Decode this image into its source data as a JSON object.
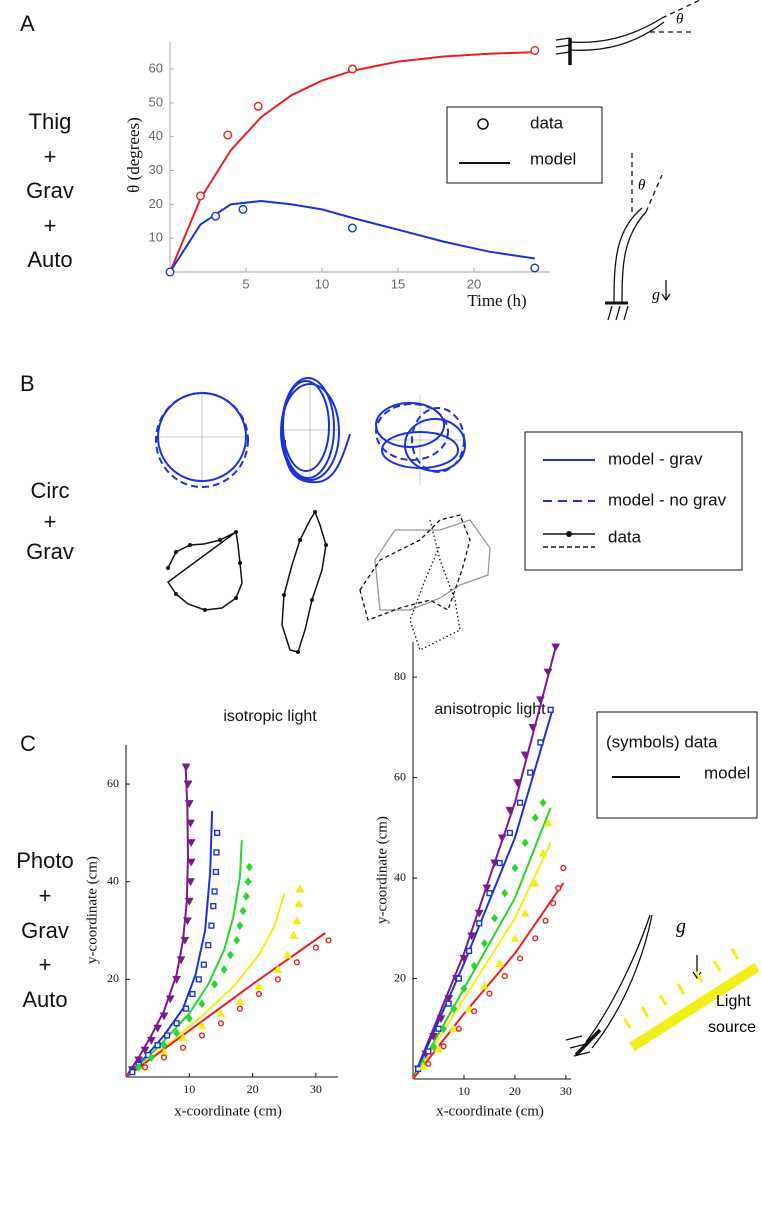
{
  "chart_data": [
    {
      "type": "scatter",
      "panel": "A",
      "condition": [
        "Thig",
        "+",
        "Grav",
        "+",
        "Auto"
      ],
      "ylabel": "θ  (degrees)",
      "xlabel": "Time (h)",
      "legend": [
        "data",
        "model"
      ],
      "annotations": [
        "θ",
        "θ",
        "g"
      ],
      "xlim": [
        0,
        25
      ],
      "ylim": [
        0,
        68
      ],
      "xticks": [
        5,
        10,
        15,
        20
      ],
      "yticks": [
        10,
        20,
        30,
        40,
        50,
        60
      ],
      "series": [
        {
          "color": "#e8201c",
          "marker": "circle-open",
          "x": [
            2,
            3.8,
            5.8,
            12,
            24
          ],
          "values": [
            22.5,
            40.5,
            49,
            60,
            65.5
          ],
          "model_x": [
            0,
            2,
            4,
            6,
            8,
            10,
            12,
            15,
            18,
            21,
            24
          ],
          "model_values": [
            0,
            21.6,
            36,
            45.8,
            52.3,
            56.6,
            59.5,
            62.2,
            63.7,
            64.5,
            65
          ]
        },
        {
          "color": "#1a33d6",
          "marker": "circle-open",
          "x": [
            0,
            3,
            4.8,
            12,
            24
          ],
          "values": [
            0,
            16.5,
            18.5,
            13,
            1.2
          ],
          "model_x": [
            0,
            2,
            4,
            6,
            8,
            10,
            12,
            15,
            18,
            21,
            24
          ],
          "model_values": [
            0,
            14,
            20,
            21,
            20,
            18.5,
            16,
            12.5,
            9,
            6,
            4
          ]
        }
      ]
    },
    {
      "type": "scatter",
      "panel": "C",
      "condition": [
        "Photo",
        "+",
        "Grav",
        "+",
        "Auto"
      ],
      "title": "isotropic light",
      "xlabel": "x-coordinate (cm)",
      "ylabel": "y-coordinate (cm)",
      "xlim": [
        0,
        33.5
      ],
      "ylim": [
        0,
        68
      ],
      "xticks": [
        10,
        20,
        30
      ],
      "yticks": [
        20,
        40,
        60
      ],
      "series": [
        {
          "color": "#7b1a8c",
          "marker": "triangle-down",
          "x": [
            1,
            2,
            3,
            4,
            5,
            6,
            7,
            8,
            8.7,
            9.3,
            9.7,
            10,
            10.2,
            10.3,
            10.3,
            10.2,
            10,
            9.8,
            9.5
          ],
          "values": [
            1.5,
            3.5,
            5.5,
            7.5,
            10,
            12.5,
            16,
            20,
            24,
            28,
            32,
            36,
            40,
            44,
            48,
            52,
            56,
            60,
            63.5
          ],
          "model_x": [
            0,
            2,
            4,
            6,
            8,
            9,
            9.6,
            9.8,
            9.7,
            9.4
          ],
          "model_values": [
            0,
            4,
            8.5,
            13.5,
            21,
            28,
            36,
            45,
            55,
            64
          ]
        },
        {
          "color": "#1a33d6",
          "marker": "square-open",
          "x": [
            1,
            2,
            3.5,
            5,
            6.5,
            8,
            9.5,
            10.5,
            11.5,
            12.3,
            13,
            13.5,
            13.8,
            14,
            14.2,
            14.3,
            14.4
          ],
          "values": [
            1,
            2.5,
            4.5,
            6.5,
            8.5,
            11,
            14,
            17,
            20,
            23,
            27,
            31,
            35,
            38,
            42,
            46,
            50
          ],
          "model_x": [
            0,
            3,
            6,
            9,
            11,
            12.5,
            13.3,
            13.6
          ],
          "model_values": [
            0,
            4,
            8.5,
            14,
            21,
            30,
            42,
            54.5
          ]
        },
        {
          "color": "#2bd62b",
          "marker": "diamond",
          "x": [
            2,
            4,
            6,
            8,
            10,
            12,
            14,
            15.5,
            16.5,
            17.5,
            18,
            18.5,
            19,
            19.3,
            19.5
          ],
          "values": [
            2,
            4,
            6.5,
            9,
            12,
            15,
            19,
            22,
            25,
            28,
            31,
            34,
            37,
            40,
            43
          ],
          "model_x": [
            0,
            5,
            10,
            13,
            15.5,
            17,
            18,
            18.3
          ],
          "model_values": [
            0,
            6,
            13,
            19,
            26,
            33,
            41,
            48.5
          ]
        },
        {
          "color": "#f2ee1a",
          "marker": "triangle-up",
          "x": [
            3,
            6,
            9,
            12,
            15,
            18,
            21,
            24,
            25.5,
            26.5,
            27,
            27.3,
            27.5
          ],
          "values": [
            2,
            5,
            8,
            10.5,
            13,
            15.5,
            18.5,
            22,
            25,
            29,
            32,
            35.5,
            38.5
          ],
          "model_x": [
            0,
            6,
            12,
            17,
            21,
            23.5,
            25
          ],
          "model_values": [
            0,
            6,
            12.5,
            18.5,
            25,
            31,
            37.5
          ]
        },
        {
          "color": "#e8201c",
          "marker": "circle-open",
          "x": [
            3,
            6,
            9,
            12,
            15,
            18,
            21,
            24,
            27,
            30,
            32
          ],
          "values": [
            2,
            4,
            6,
            8.5,
            11,
            14,
            17,
            20,
            23.5,
            26.5,
            28
          ],
          "model_x": [
            0,
            10,
            20,
            31.5
          ],
          "model_values": [
            0,
            9.5,
            19,
            29.5
          ]
        }
      ]
    },
    {
      "type": "scatter",
      "title": "anisotropic light",
      "xlabel": "x-coordinate (cm)",
      "ylabel": "y-coordinate (cm)",
      "xlim": [
        0,
        31
      ],
      "ylim": [
        0,
        87
      ],
      "xticks": [
        10,
        20,
        30
      ],
      "yticks": [
        20,
        40,
        60,
        80
      ],
      "legend": [
        "(symbols)  data",
        "model"
      ],
      "annotations": [
        "g",
        "Light",
        "source"
      ],
      "series": [
        {
          "color": "#7b1a8c",
          "marker": "triangle-down",
          "x": [
            1,
            2.5,
            4,
            5.5,
            7,
            8.5,
            10,
            11.5,
            13,
            14.5,
            16,
            17.5,
            19,
            20.5,
            22,
            23.5,
            25,
            26.5,
            28
          ],
          "values": [
            2,
            5,
            8.5,
            12,
            16,
            20,
            24,
            28.5,
            33,
            38,
            43,
            48,
            53.5,
            59,
            64.5,
            70,
            75.5,
            81,
            86
          ],
          "model_x": [
            0,
            10,
            20,
            28
          ],
          "model_values": [
            0,
            25,
            55,
            86
          ]
        },
        {
          "color": "#1a33d6",
          "marker": "square-open",
          "x": [
            1,
            3,
            5,
            7,
            9,
            11,
            13,
            15,
            17,
            19,
            21,
            23,
            25,
            27
          ],
          "values": [
            2,
            5.5,
            10,
            15,
            20,
            25.5,
            31,
            37,
            43,
            49,
            55,
            61,
            67,
            73.5
          ],
          "model_x": [
            0,
            10,
            20,
            27.5
          ],
          "model_values": [
            0,
            23,
            48,
            74
          ]
        },
        {
          "color": "#2bd62b",
          "marker": "diamond",
          "x": [
            2,
            4,
            6,
            8,
            10,
            12,
            14,
            16,
            18,
            20,
            22,
            24,
            25.5
          ],
          "values": [
            3,
            6.5,
            10,
            14,
            18,
            22.5,
            27,
            32,
            37,
            42,
            47,
            52,
            55
          ],
          "model_x": [
            0,
            10,
            20,
            27
          ],
          "model_values": [
            0,
            18,
            36,
            54
          ]
        },
        {
          "color": "#f2ee1a",
          "marker": "triangle-up",
          "x": [
            2,
            5,
            8,
            11,
            14,
            17,
            20,
            22,
            24,
            25.5,
            26.5
          ],
          "values": [
            2.5,
            6,
            10,
            14,
            18.5,
            23,
            28,
            33,
            39,
            45,
            51
          ],
          "model_x": [
            0,
            10,
            20,
            27
          ],
          "model_values": [
            0,
            16,
            32,
            47
          ]
        },
        {
          "color": "#e8201c",
          "marker": "circle-open",
          "x": [
            3,
            6,
            9,
            12,
            15,
            18,
            21,
            24,
            26,
            27.5,
            28.5,
            29.5
          ],
          "values": [
            3,
            6.5,
            10,
            13.5,
            17,
            20.5,
            24,
            28,
            31.5,
            35,
            38,
            42
          ],
          "model_x": [
            0,
            10,
            20,
            29.5
          ],
          "model_values": [
            0,
            13,
            25,
            39
          ]
        }
      ]
    }
  ],
  "panel_b": {
    "label": "B",
    "condition": [
      "Circ",
      "+",
      "Grav"
    ],
    "legend": [
      "model - grav",
      "model - no grav",
      "data"
    ]
  }
}
